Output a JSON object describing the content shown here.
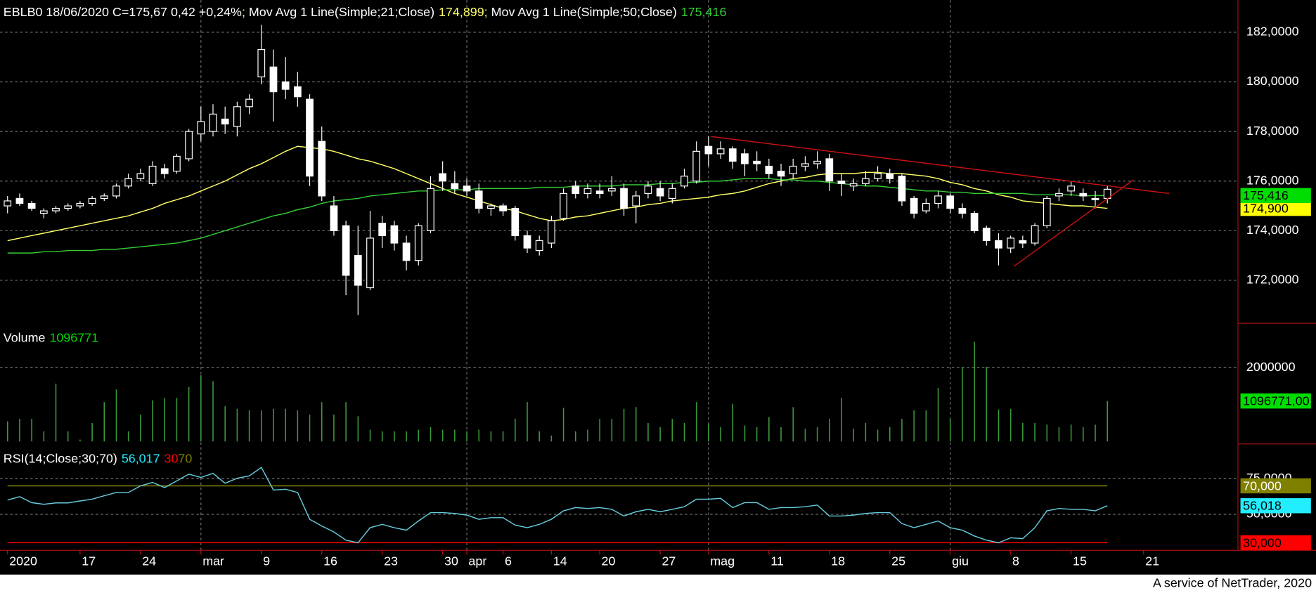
{
  "footer": "A service of NetTrader, 2020",
  "chart_data": [
    {
      "type": "candlestick",
      "title": "EBLB0 18/06/2020 C=175,67 0,42 +0,24%",
      "separator": "; ",
      "categories": [
        "2020",
        null,
        null,
        null,
        null,
        null,
        "17",
        null,
        null,
        null,
        null,
        "24",
        null,
        null,
        null,
        null,
        "mar",
        null,
        null,
        null,
        null,
        "9",
        null,
        null,
        null,
        null,
        "16",
        null,
        null,
        null,
        null,
        "23",
        null,
        null,
        null,
        null,
        "30",
        null,
        "apr",
        null,
        null,
        "6",
        null,
        null,
        null,
        "14",
        null,
        null,
        null,
        "20",
        null,
        null,
        null,
        null,
        "27",
        null,
        null,
        null,
        "mag",
        null,
        null,
        null,
        null,
        "11",
        null,
        null,
        null,
        null,
        "18",
        null,
        null,
        null,
        null,
        "25",
        null,
        null,
        null,
        null,
        "giu",
        null,
        null,
        null,
        null,
        "8",
        null,
        null,
        null,
        null,
        "15",
        null,
        null,
        null,
        null,
        null,
        "21"
      ],
      "open": [
        175.0,
        175.3,
        175.1,
        174.7,
        174.8,
        174.9,
        175.0,
        175.1,
        175.3,
        175.4,
        175.8,
        176.1,
        175.9,
        176.5,
        176.4,
        176.9,
        177.9,
        178.0,
        178.5,
        178.2,
        179.0,
        180.2,
        180.6,
        180.0,
        179.8,
        179.3,
        177.6,
        175.0,
        174.2,
        173.0,
        171.7,
        174.3,
        174.2,
        173.5,
        172.8,
        174.0,
        176.3,
        175.9,
        175.8,
        175.6,
        174.9,
        175.0,
        174.9,
        173.8,
        173.2,
        173.5,
        174.5,
        175.8,
        175.5,
        175.6,
        175.6,
        175.7,
        175.0,
        175.5,
        175.7,
        175.3,
        175.8,
        176.0,
        177.4,
        177.1,
        177.3,
        177.1,
        176.8,
        176.6,
        176.4,
        176.3,
        176.6,
        176.7,
        176.9,
        176.0,
        175.8,
        175.9,
        176.1,
        176.3,
        176.2,
        175.3,
        174.8,
        175.1,
        175.4,
        174.9,
        174.7,
        174.1,
        173.6,
        173.3,
        173.6,
        173.5,
        174.2,
        175.4,
        175.6,
        175.5,
        175.3,
        175.3,
        null,
        null,
        null
      ],
      "high": [
        175.4,
        175.5,
        175.2,
        174.9,
        175.0,
        175.1,
        175.2,
        175.4,
        175.5,
        175.9,
        176.3,
        176.5,
        176.8,
        176.7,
        177.1,
        178.1,
        179.0,
        179.1,
        179.0,
        179.2,
        179.5,
        182.3,
        181.3,
        181.0,
        180.4,
        179.5,
        178.2,
        175.4,
        174.4,
        174.2,
        174.8,
        174.6,
        174.4,
        173.8,
        174.3,
        176.2,
        176.8,
        176.4,
        176.1,
        175.9,
        175.1,
        175.1,
        175.0,
        174.0,
        173.8,
        174.6,
        175.7,
        176.0,
        175.9,
        175.9,
        176.2,
        175.9,
        175.6,
        176.0,
        176.0,
        175.9,
        176.5,
        177.6,
        177.8,
        177.6,
        177.4,
        177.3,
        177.2,
        176.9,
        176.7,
        176.9,
        177.0,
        177.2,
        177.1,
        176.3,
        176.1,
        176.4,
        176.6,
        176.5,
        176.3,
        175.4,
        175.3,
        175.6,
        175.5,
        175.1,
        174.8,
        174.2,
        173.9,
        173.8,
        173.8,
        174.3,
        175.4,
        175.7,
        176.0,
        175.7,
        175.6,
        175.8,
        null,
        null,
        null
      ],
      "low": [
        174.7,
        175.0,
        174.8,
        174.5,
        174.7,
        174.8,
        174.9,
        175.0,
        175.2,
        175.3,
        175.7,
        176.0,
        175.8,
        176.1,
        176.3,
        176.8,
        177.6,
        177.8,
        177.9,
        177.8,
        178.7,
        179.9,
        178.4,
        179.3,
        179.0,
        175.8,
        175.2,
        173.8,
        171.4,
        170.6,
        171.6,
        173.3,
        173.2,
        172.4,
        172.6,
        173.9,
        175.6,
        175.5,
        175.4,
        174.7,
        174.6,
        174.6,
        173.6,
        173.1,
        173.0,
        173.3,
        174.4,
        175.3,
        175.3,
        175.3,
        175.4,
        174.6,
        174.3,
        175.3,
        175.2,
        175.1,
        175.7,
        175.9,
        176.6,
        176.9,
        176.5,
        176.2,
        176.4,
        176.1,
        175.8,
        176.1,
        176.4,
        176.5,
        175.6,
        175.4,
        175.6,
        175.8,
        176.0,
        175.9,
        175.0,
        174.5,
        174.7,
        174.9,
        174.7,
        174.5,
        173.9,
        173.4,
        172.6,
        173.1,
        173.3,
        173.4,
        174.1,
        175.2,
        175.4,
        175.2,
        174.9,
        175.1,
        null,
        null,
        null
      ],
      "close": [
        175.2,
        175.1,
        174.9,
        174.8,
        174.9,
        175.0,
        175.1,
        175.3,
        175.4,
        175.8,
        176.1,
        176.3,
        176.6,
        176.3,
        177.0,
        178.0,
        178.4,
        178.7,
        178.3,
        179.0,
        179.3,
        181.3,
        179.6,
        179.7,
        179.4,
        176.2,
        175.4,
        174.0,
        172.2,
        171.8,
        173.7,
        173.8,
        173.5,
        172.8,
        174.2,
        175.7,
        176.0,
        175.7,
        175.6,
        174.9,
        175.0,
        174.8,
        173.8,
        173.3,
        173.6,
        174.4,
        175.5,
        175.5,
        175.7,
        175.5,
        175.7,
        174.9,
        175.4,
        175.8,
        175.4,
        175.7,
        176.2,
        177.2,
        177.1,
        177.3,
        176.8,
        176.7,
        176.7,
        176.3,
        176.2,
        176.6,
        176.7,
        176.8,
        176.0,
        175.9,
        175.9,
        176.1,
        176.3,
        176.1,
        175.2,
        174.7,
        175.1,
        175.4,
        174.9,
        174.7,
        174.0,
        173.6,
        173.3,
        173.7,
        173.5,
        174.2,
        175.3,
        175.5,
        175.8,
        175.4,
        175.25,
        175.67,
        null,
        null,
        null
      ],
      "color": "#ffffff",
      "series": [
        {
          "name": "Mov Avg 1 Line(Simple;21;Close)",
          "color": "#ffff66",
          "value_label": "174,899",
          "axis_label": "174,900",
          "values": [
            173.6,
            173.7,
            173.8,
            173.9,
            174.0,
            174.1,
            174.2,
            174.3,
            174.4,
            174.5,
            174.6,
            174.75,
            174.9,
            175.1,
            175.25,
            175.4,
            175.6,
            175.8,
            176.0,
            176.25,
            176.5,
            176.7,
            176.95,
            177.2,
            177.4,
            177.35,
            177.3,
            177.2,
            177.05,
            176.9,
            176.8,
            176.65,
            176.5,
            176.3,
            176.1,
            175.9,
            175.7,
            175.5,
            175.35,
            175.2,
            175.05,
            174.9,
            174.8,
            174.65,
            174.5,
            174.4,
            174.45,
            174.55,
            174.6,
            174.7,
            174.8,
            174.9,
            174.95,
            175.05,
            175.1,
            175.2,
            175.25,
            175.3,
            175.35,
            175.45,
            175.5,
            175.6,
            175.75,
            175.9,
            176.0,
            176.1,
            176.15,
            176.25,
            176.3,
            176.3,
            176.3,
            176.35,
            176.35,
            176.3,
            176.3,
            176.25,
            176.2,
            176.1,
            175.95,
            175.85,
            175.7,
            175.6,
            175.45,
            175.35,
            175.2,
            175.15,
            175.1,
            175.05,
            175.0,
            175.0,
            174.95,
            174.899,
            null,
            null,
            null
          ]
        },
        {
          "name": "Mov Avg 1 Line(Simple;50;Close)",
          "color": "#33cc33",
          "value_label": "175,416",
          "axis_label": "175,416",
          "values": [
            173.1,
            173.1,
            173.1,
            173.15,
            173.15,
            173.2,
            173.2,
            173.2,
            173.25,
            173.25,
            173.3,
            173.35,
            173.4,
            173.45,
            173.5,
            173.6,
            173.7,
            173.85,
            174.0,
            174.15,
            174.3,
            174.45,
            174.6,
            174.7,
            174.85,
            174.95,
            175.1,
            175.2,
            175.25,
            175.3,
            175.4,
            175.45,
            175.5,
            175.55,
            175.6,
            175.6,
            175.65,
            175.65,
            175.65,
            175.7,
            175.7,
            175.7,
            175.7,
            175.7,
            175.75,
            175.75,
            175.75,
            175.8,
            175.8,
            175.8,
            175.8,
            175.85,
            175.85,
            175.85,
            175.9,
            175.9,
            175.95,
            175.95,
            176.0,
            176.0,
            176.05,
            176.1,
            176.1,
            176.1,
            176.05,
            176.05,
            176.0,
            176.0,
            175.95,
            175.9,
            175.85,
            175.8,
            175.8,
            175.75,
            175.7,
            175.65,
            175.6,
            175.6,
            175.55,
            175.55,
            175.5,
            175.5,
            175.5,
            175.5,
            175.5,
            175.45,
            175.45,
            175.45,
            175.45,
            175.4,
            175.42,
            175.416,
            null,
            null,
            null
          ]
        }
      ],
      "ylim": [
        170.3,
        183.3
      ],
      "yticks": [
        {
          "value": 172,
          "label": "172,0000"
        },
        {
          "value": 174,
          "label": "174,0000"
        },
        {
          "value": 176,
          "label": "176,0000"
        },
        {
          "value": 178,
          "label": "178,0000"
        },
        {
          "value": 180,
          "label": "180,0000"
        },
        {
          "value": 182,
          "label": "182,0000"
        }
      ],
      "grid": true
    },
    {
      "type": "bar",
      "title": "Volume",
      "value_label": "1096771",
      "axis_label": "1096771,00",
      "color": "#3c9c3c",
      "badge_color": "#00dd00",
      "values": [
        545000,
        614000,
        614000,
        273000,
        1568000,
        273000,
        50000,
        500000,
        1068000,
        1409000,
        273000,
        727000,
        1114000,
        1182000,
        1182000,
        1477000,
        1795000,
        1636000,
        955000,
        886000,
        841000,
        841000,
        886000,
        886000,
        841000,
        727000,
        1068000,
        727000,
        1068000,
        682000,
        318000,
        273000,
        273000,
        273000,
        318000,
        386000,
        318000,
        318000,
        273000,
        318000,
        273000,
        273000,
        614000,
        1068000,
        273000,
        159000,
        909000,
        273000,
        318000,
        614000,
        614000,
        886000,
        932000,
        500000,
        386000,
        614000,
        500000,
        1068000,
        477000,
        386000,
        1023000,
        432000,
        386000,
        659000,
        386000,
        932000,
        341000,
        386000,
        614000,
        1182000,
        341000,
        500000,
        318000,
        386000,
        614000,
        841000,
        841000,
        1455000,
        614000,
        2023000,
        2705000,
        2023000,
        864000,
        886000,
        500000,
        500000,
        455000,
        386000,
        455000,
        386000,
        455000,
        1096771,
        null,
        null,
        null
      ],
      "ylim": [
        0,
        3160000
      ],
      "yticks": [
        2000000
      ],
      "grid": true
    },
    {
      "type": "line",
      "title": "RSI(14;Close;30;70)",
      "value_label": "56,017",
      "axis_label": "56,018",
      "color": "#66ccdd",
      "badge_color": "#22eeff",
      "values": [
        60,
        62.4,
        58.2,
        57,
        58,
        58,
        59.4,
        60.6,
        63,
        65.3,
        65.3,
        70,
        72.4,
        68.8,
        73.5,
        78.2,
        75.9,
        78.8,
        71.8,
        75.3,
        77,
        82.9,
        67,
        67.6,
        65.3,
        46.5,
        41.8,
        37.6,
        31.8,
        30,
        40.6,
        42.9,
        40.6,
        38.8,
        45.3,
        51.2,
        51.2,
        50.6,
        49.4,
        46.5,
        47.6,
        47.6,
        42.4,
        40.6,
        42.9,
        46.5,
        52.4,
        54.7,
        54.1,
        54.7,
        53.5,
        48.8,
        51.8,
        53.5,
        51.8,
        53.5,
        55.3,
        60.6,
        60.6,
        61.2,
        54.7,
        58.2,
        58.2,
        53.5,
        54.7,
        54.7,
        55.3,
        56.5,
        48.8,
        48.8,
        49.4,
        50.6,
        51.2,
        51.2,
        43.5,
        40.6,
        42.9,
        45.3,
        40.6,
        38.8,
        34.7,
        31.8,
        30,
        33.5,
        32.9,
        40.6,
        52.4,
        54.1,
        53.5,
        53.5,
        52.4,
        56.017,
        null,
        null,
        null
      ],
      "levels": [
        {
          "value": 30,
          "color": "#ff0000",
          "axis_label": "30,000"
        },
        {
          "value": 70,
          "color": "#808000",
          "axis_label": "70,000"
        }
      ],
      "ylim": [
        24.7,
        97.7
      ],
      "yticks": [
        {
          "value": 50,
          "label": "50,0000"
        },
        {
          "value": 75,
          "label": "75,0000"
        }
      ],
      "grid": true
    }
  ]
}
